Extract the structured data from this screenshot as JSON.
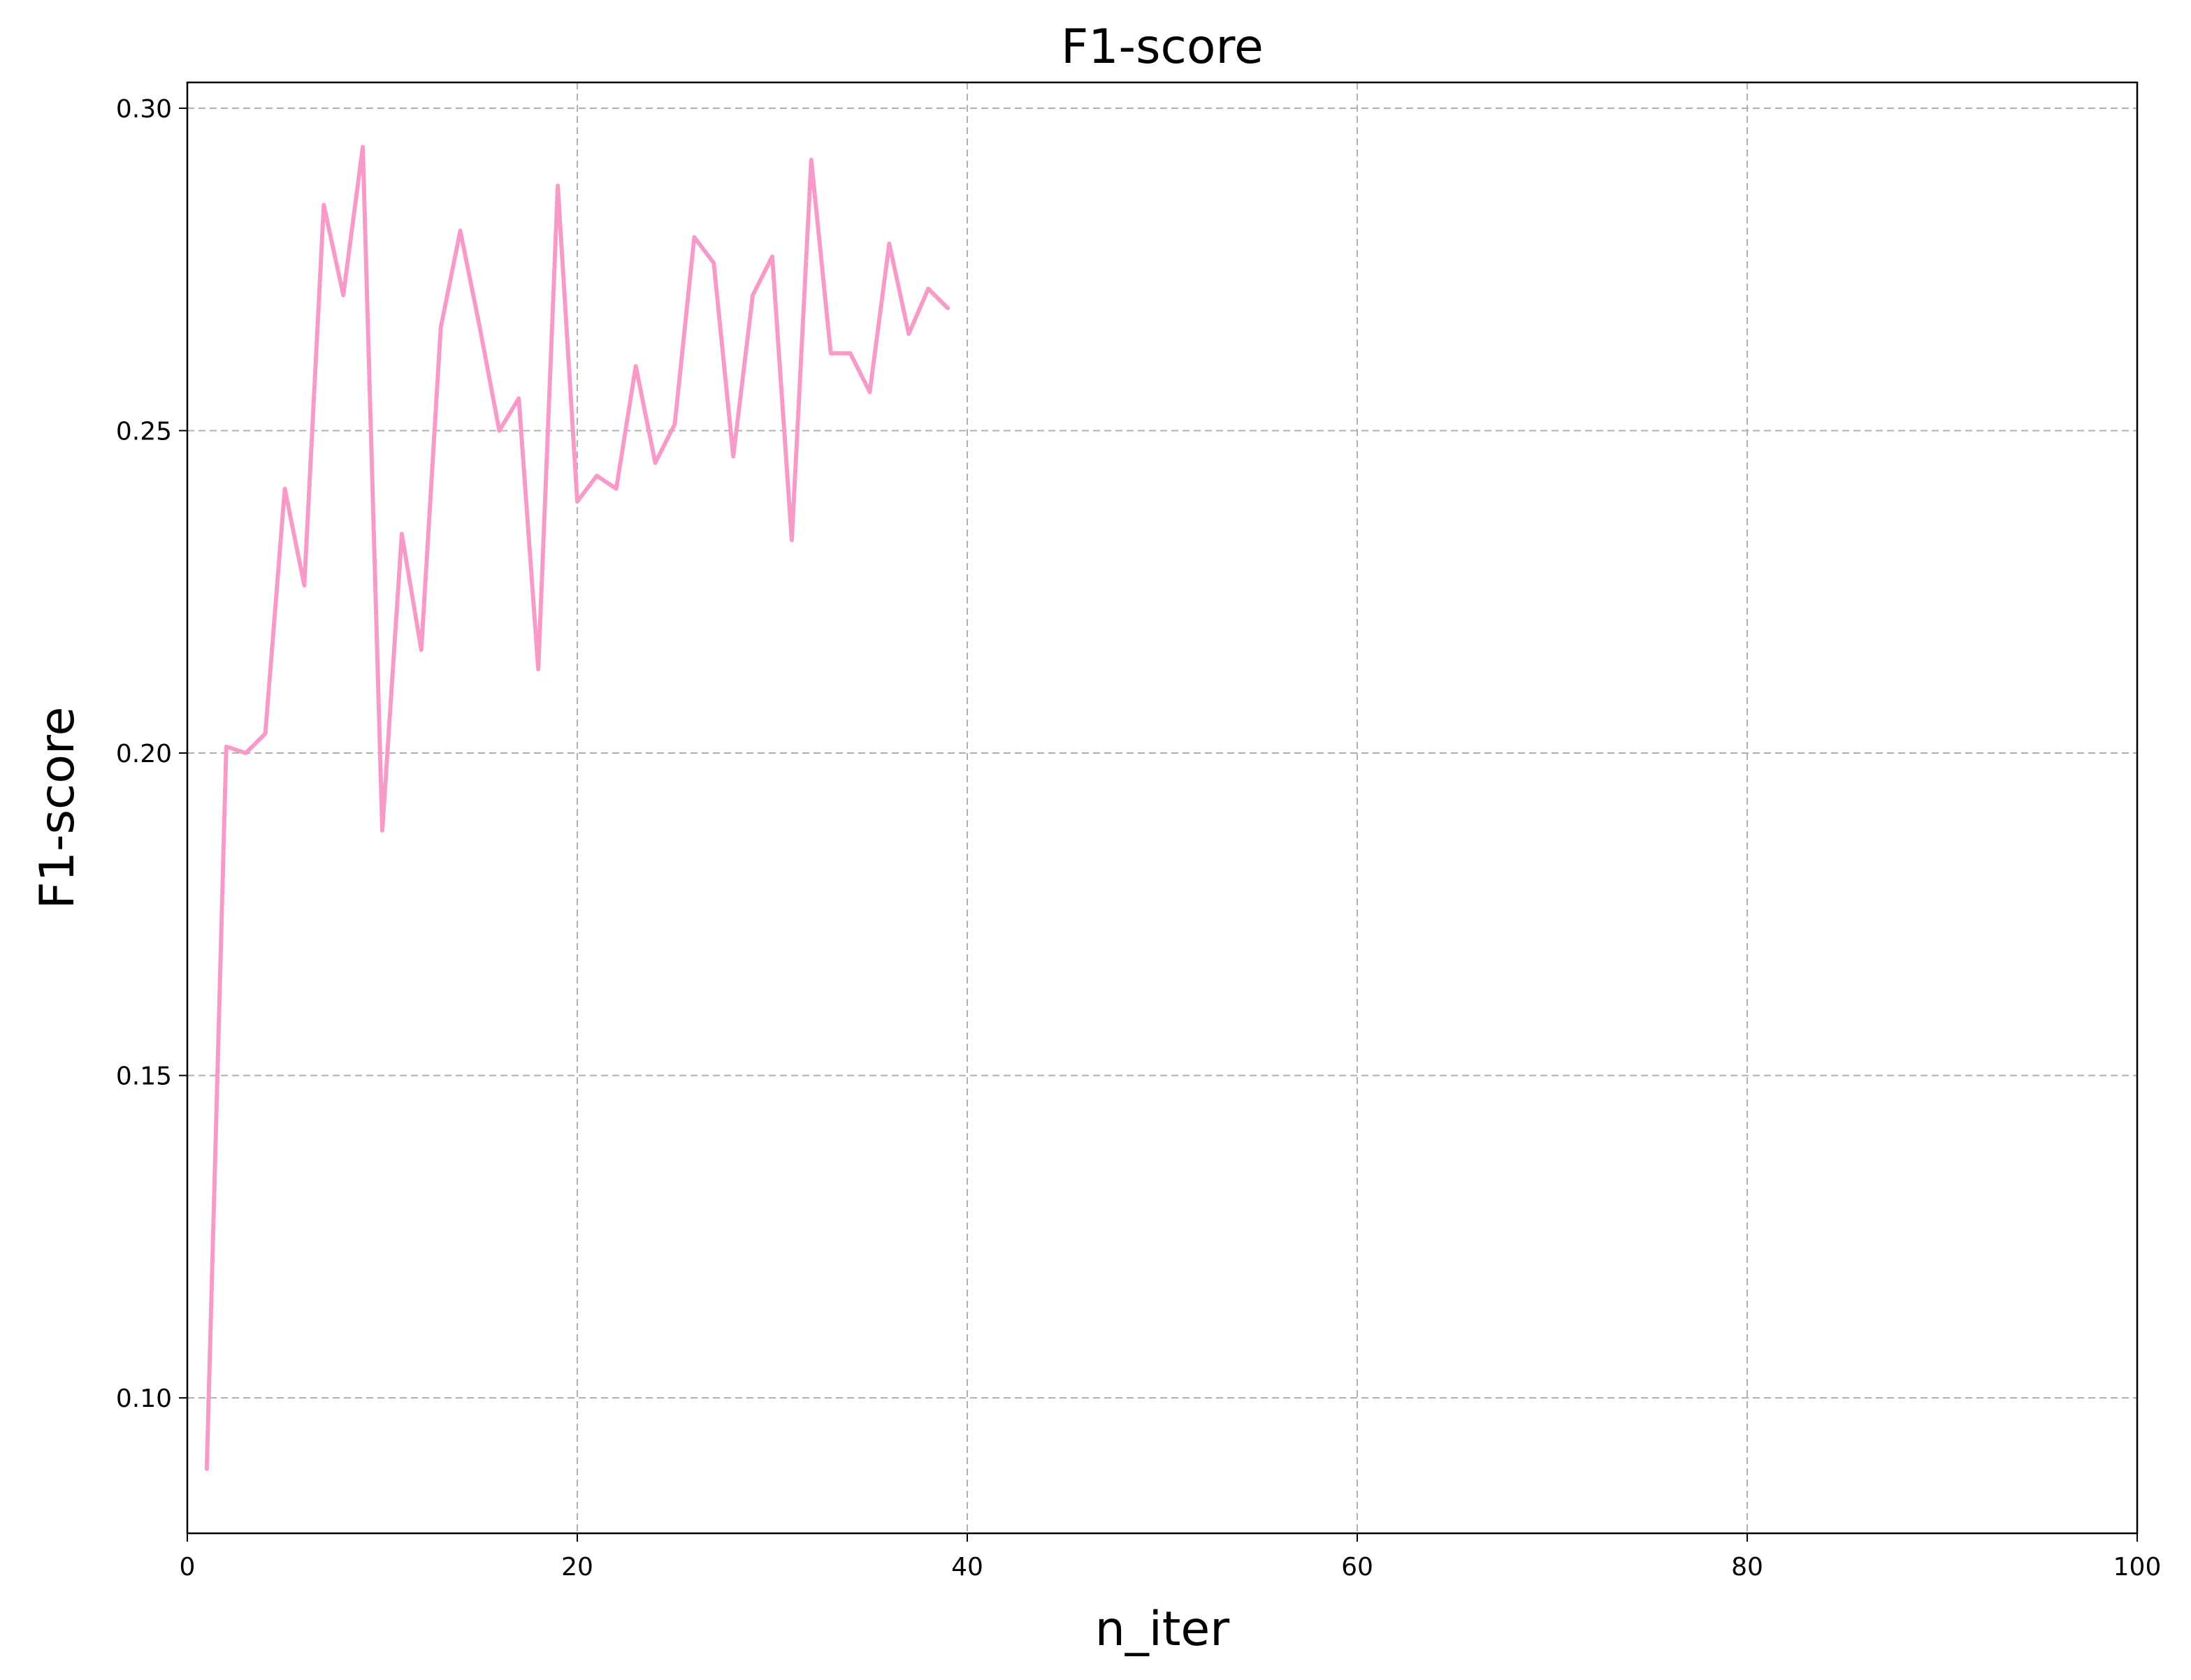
{
  "chart_data": {
    "type": "line",
    "title": "F1-score",
    "xlabel": "n_iter",
    "ylabel": "F1-score",
    "xlim": [
      0,
      100
    ],
    "ylim": [
      0.079,
      0.304
    ],
    "xticks": [
      0,
      20,
      40,
      60,
      80,
      100
    ],
    "xtick_labels": [
      "0",
      "20",
      "40",
      "60",
      "80",
      "100"
    ],
    "yticks": [
      0.1,
      0.15,
      0.2,
      0.25,
      0.3
    ],
    "ytick_labels": [
      "0.10",
      "0.15",
      "0.20",
      "0.25",
      "0.30"
    ],
    "grid": true,
    "series": [
      {
        "color": "#f79ac9",
        "x": [
          1,
          2,
          3,
          4,
          5,
          6,
          7,
          8,
          9,
          10,
          11,
          12,
          13,
          14,
          15,
          16,
          17,
          18,
          19,
          20,
          21,
          22,
          23,
          24,
          25,
          26,
          27,
          28,
          29,
          30,
          31,
          32,
          33,
          34,
          35,
          36,
          37,
          38,
          39
        ],
        "values": [
          0.089,
          0.201,
          0.2,
          0.203,
          0.241,
          0.226,
          0.285,
          0.271,
          0.294,
          0.188,
          0.234,
          0.216,
          0.266,
          0.281,
          0.266,
          0.25,
          0.255,
          0.213,
          0.288,
          0.239,
          0.243,
          0.241,
          0.26,
          0.245,
          0.251,
          0.28,
          0.276,
          0.246,
          0.271,
          0.277,
          0.233,
          0.292,
          0.262,
          0.262,
          0.256,
          0.279,
          0.265,
          0.272,
          0.269
        ]
      }
    ]
  }
}
